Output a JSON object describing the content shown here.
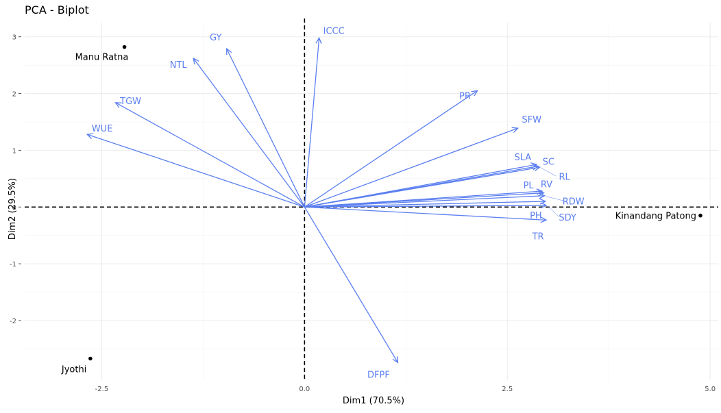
{
  "chart_data": {
    "type": "scatter",
    "title": "PCA - Biplot",
    "xlabel": "Dim1 (70.5%)",
    "ylabel": "Dim2 (29.5%)",
    "xlim": [
      -3.45,
      5.1
    ],
    "ylim": [
      -3.05,
      3.25
    ],
    "x_ticks": [
      -2.5,
      0.0,
      2.5,
      5.0
    ],
    "x_tick_labels": [
      "-2.5",
      "0.0",
      "2.5",
      "5.0"
    ],
    "y_ticks": [
      -2,
      -1,
      0,
      1,
      2,
      3
    ],
    "y_tick_labels": [
      "-2",
      "-1",
      "0",
      "1",
      "2",
      "3"
    ],
    "grid": true,
    "arrow_color": "#5b7ff0",
    "point_color": "#000000",
    "variables": [
      {
        "name": "ICCC",
        "x": 0.18,
        "y": 2.98
      },
      {
        "name": "GY",
        "x": -0.96,
        "y": 2.79
      },
      {
        "name": "NTL",
        "x": -1.37,
        "y": 2.62
      },
      {
        "name": "TGW",
        "x": -2.33,
        "y": 1.84
      },
      {
        "name": "WUE",
        "x": -2.68,
        "y": 1.28
      },
      {
        "name": "PR",
        "x": 2.13,
        "y": 2.05
      },
      {
        "name": "SFW",
        "x": 2.63,
        "y": 1.39
      },
      {
        "name": "SLA",
        "x": 2.86,
        "y": 0.75
      },
      {
        "name": "SC",
        "x": 2.88,
        "y": 0.72
      },
      {
        "name": "RL",
        "x": 2.9,
        "y": 0.7
      },
      {
        "name": "PL",
        "x": 2.93,
        "y": 0.28
      },
      {
        "name": "RV",
        "x": 2.95,
        "y": 0.25
      },
      {
        "name": "RDW",
        "x": 2.96,
        "y": 0.2
      },
      {
        "name": "PH",
        "x": 2.97,
        "y": 0.1
      },
      {
        "name": "SDY",
        "x": 2.98,
        "y": 0.03
      },
      {
        "name": "TR",
        "x": 2.98,
        "y": -0.23
      },
      {
        "name": "DFPF",
        "x": 1.15,
        "y": -2.74
      }
    ],
    "individuals": [
      {
        "name": "Manu Ratna",
        "x": -2.22,
        "y": 2.82
      },
      {
        "name": "Jyothi",
        "x": -2.64,
        "y": -2.67
      },
      {
        "name": "Kinandang Patong",
        "x": 4.88,
        "y": -0.15
      }
    ]
  }
}
